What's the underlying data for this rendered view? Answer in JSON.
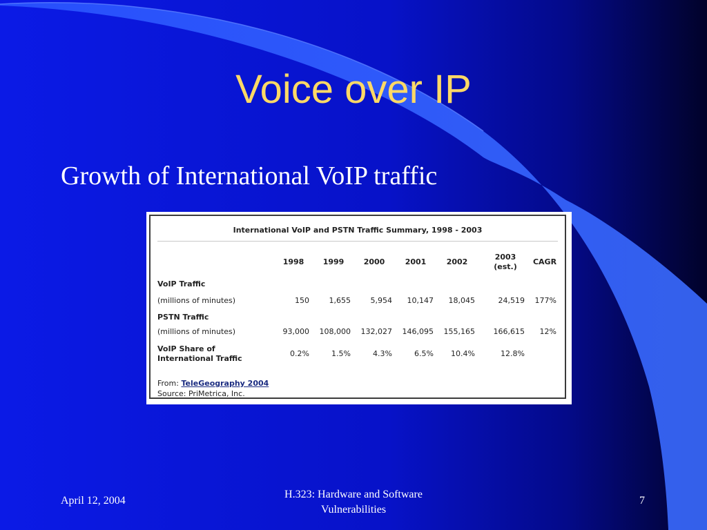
{
  "slide": {
    "title": "Voice over IP",
    "bullet": "Growth of International VoIP traffic"
  },
  "table": {
    "title": "International VoIP and PSTN Traffic Summary, 1998 - 2003",
    "columns": [
      "1998",
      "1999",
      "2000",
      "2001",
      "2002",
      "2003\n(est.)",
      "CAGR"
    ],
    "voip_header": "VoIP Traffic",
    "voip_unit": "(millions of minutes)",
    "voip_values": [
      "150",
      "1,655",
      "5,954",
      "10,147",
      "18,045",
      "24,519",
      "177%"
    ],
    "pstn_header": "PSTN Traffic",
    "pstn_unit": "(millions of minutes)",
    "pstn_values": [
      "93,000",
      "108,000",
      "132,027",
      "146,095",
      "155,165",
      "166,615",
      "12%"
    ],
    "share_label_1": "VoIP Share of",
    "share_label_2": "International Traffic",
    "share_values": [
      "0.2%",
      "1.5%",
      "4.3%",
      "6.5%",
      "10.4%",
      "12.8%"
    ],
    "from_label": "From:",
    "from_link": "TeleGeography 2004",
    "source": "Source: PriMetrica, Inc."
  },
  "footer": {
    "date": "April 12, 2004",
    "center_line1": "H.323:  Hardware and Software",
    "center_line2": "Vulnerabilities",
    "page": "7"
  },
  "colors": {
    "background": "#0a18e0",
    "title": "#ffd966",
    "swoosh": "#2f5cff"
  }
}
